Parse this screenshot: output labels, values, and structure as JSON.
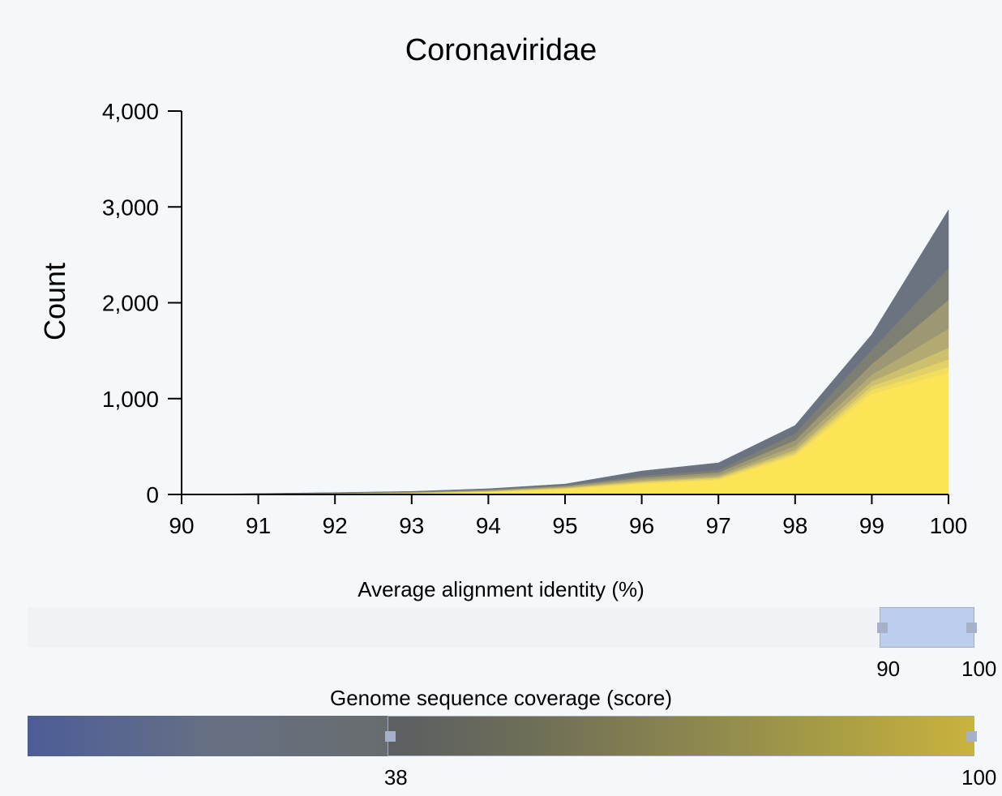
{
  "chart_data": {
    "type": "area",
    "title": "Coronaviridae",
    "ylabel": "Count",
    "xlabel": "",
    "x": [
      90,
      91,
      92,
      93,
      94,
      95,
      96,
      97,
      98,
      99,
      100
    ],
    "xlim": [
      90,
      100
    ],
    "ylim": [
      0,
      4000
    ],
    "y_ticks": [
      "0",
      "1,000",
      "2,000",
      "3,000",
      "4,000"
    ],
    "x_ticks": [
      "90",
      "91",
      "92",
      "93",
      "94",
      "95",
      "96",
      "97",
      "98",
      "99",
      "100"
    ],
    "stacked": true,
    "series": [
      {
        "values": [
          0,
          2,
          5,
          10,
          25,
          55,
          110,
          150,
          400,
          1050,
          1270
        ],
        "color": "#fde457"
      },
      {
        "values": [
          0,
          1,
          2,
          3,
          4,
          6,
          10,
          12,
          20,
          40,
          60
        ],
        "color": "#f2de5e"
      },
      {
        "values": [
          0,
          1,
          2,
          3,
          4,
          6,
          10,
          12,
          20,
          40,
          80
        ],
        "color": "#e2d166"
      },
      {
        "values": [
          0,
          1,
          2,
          3,
          4,
          6,
          10,
          12,
          25,
          50,
          120
        ],
        "color": "#cdc06c"
      },
      {
        "values": [
          0,
          1,
          2,
          3,
          5,
          8,
          15,
          18,
          40,
          70,
          200
        ],
        "color": "#b3aa71"
      },
      {
        "values": [
          0,
          1,
          2,
          3,
          5,
          8,
          20,
          25,
          60,
          110,
          300
        ],
        "color": "#9d9873"
      },
      {
        "values": [
          0,
          1,
          2,
          3,
          5,
          8,
          20,
          25,
          70,
          150,
          330
        ],
        "color": "#7d7f72"
      },
      {
        "values": [
          0,
          2,
          3,
          4,
          8,
          12,
          50,
          76,
          85,
          160,
          610
        ],
        "color": "#6b7380"
      }
    ]
  },
  "identity_slider": {
    "title": "Average alignment identity (%)",
    "min_label": "90",
    "max_label": "100",
    "domain": [
      0,
      100
    ],
    "range": [
      90,
      100
    ]
  },
  "coverage_slider": {
    "title": "Genome sequence coverage (score)",
    "min_label": "38",
    "max_label": "100",
    "domain": [
      0,
      100
    ],
    "range": [
      38,
      100
    ]
  }
}
